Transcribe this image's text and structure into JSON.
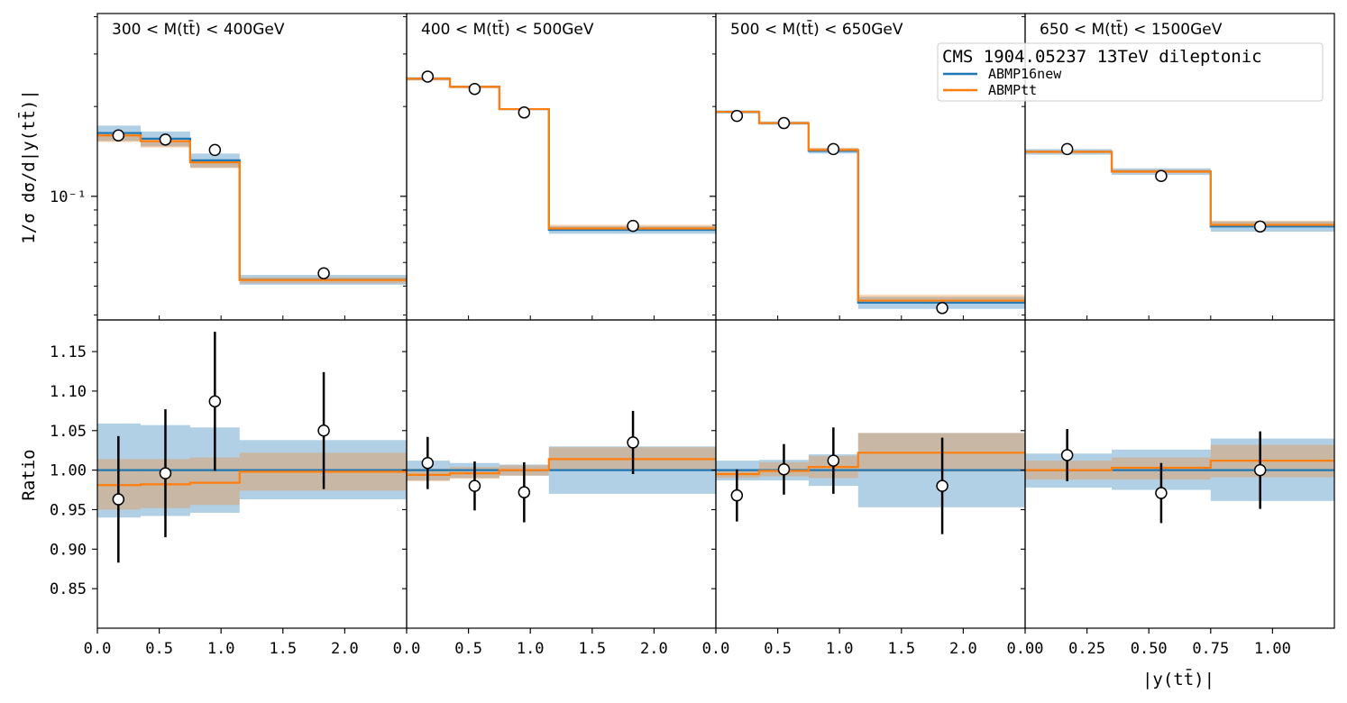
{
  "chart_data": {
    "type": "line",
    "legend": {
      "title": "CMS 1904.05237 13TeV dileptonic",
      "placement": "top-right",
      "entries": [
        {
          "name": "ABMP16new",
          "color": "#1f77b4"
        },
        {
          "name": "ABMPtt",
          "color": "#ff7f0e"
        }
      ]
    },
    "ylabel_top": "1/σ dσ/d|y(tt̄)|",
    "ylabel_bottom": "Ratio",
    "xlabel": "|y(tt̄)|",
    "top_yscale": "log",
    "top_yticklabel": "10⁻¹",
    "bottom_ylim": [
      0.8,
      1.19
    ],
    "bottom_yticks": [
      "0.85",
      "0.90",
      "0.95",
      "1.00",
      "1.05",
      "1.10",
      "1.15"
    ],
    "panels": [
      {
        "title": "300 < M(tt̄) < 400GeV",
        "xlim": [
          0,
          2.5
        ],
        "xticks": [
          "0.0",
          "0.5",
          "1.0",
          "1.5",
          "2.0"
        ],
        "bin_edges": [
          0,
          0.35,
          0.75,
          1.15,
          2.5
        ],
        "data": {
          "x": [
            0.17,
            0.55,
            0.95,
            1.83
          ],
          "y": [
            0.16,
            0.155,
            0.143,
            0.0552
          ],
          "yerr": [
            0.006,
            0.006,
            0.006,
            0.002
          ],
          "ratio": [
            0.963,
            0.996,
            1.087,
            1.05
          ],
          "ratio_err": [
            0.08,
            0.081,
            0.088,
            0.074
          ]
        },
        "ABMP16new": {
          "y": [
            0.163,
            0.156,
            0.132,
            0.0525
          ],
          "band_lo": [
            0.94,
            0.942,
            0.946,
            0.963
          ],
          "band_hi": [
            1.059,
            1.057,
            1.054,
            1.038
          ],
          "ratio": [
            1.0,
            1.0,
            1.0,
            1.0
          ]
        },
        "ABMPtt": {
          "y": [
            0.16,
            0.153,
            0.13,
            0.0524
          ],
          "band_lo": [
            0.95,
            0.952,
            0.956,
            0.974
          ],
          "band_hi": [
            1.014,
            1.014,
            1.016,
            1.022
          ],
          "ratio": [
            0.981,
            0.982,
            0.984,
            0.998
          ]
        }
      },
      {
        "title": "400 < M(tt̄) < 500GeV",
        "xlim": [
          0,
          2.5
        ],
        "xticks": [
          "0.0",
          "0.5",
          "1.0",
          "1.5",
          "2.0"
        ],
        "bin_edges": [
          0,
          0.35,
          0.75,
          1.15,
          2.5
        ],
        "data": {
          "x": [
            0.17,
            0.55,
            0.95,
            1.83
          ],
          "y": [
            0.252,
            0.229,
            0.191,
            0.0796
          ],
          "yerr": [
            0.003,
            0.003,
            0.003,
            0.0015
          ],
          "ratio": [
            1.009,
            0.98,
            0.972,
            1.035
          ],
          "ratio_err": [
            0.033,
            0.031,
            0.038,
            0.04
          ]
        },
        "ABMP16new": {
          "y": [
            0.248,
            0.233,
            0.196,
            0.0772
          ],
          "band_lo": [
            0.987,
            0.99,
            0.993,
            0.97
          ],
          "band_hi": [
            1.012,
            1.009,
            1.007,
            1.03
          ],
          "ratio": [
            1.0,
            1.0,
            1.0,
            1.0
          ]
        },
        "ABMPtt": {
          "y": [
            0.248,
            0.233,
            0.196,
            0.078
          ],
          "band_lo": [
            0.986,
            0.989,
            0.993,
            1.0
          ],
          "band_hi": [
            1.002,
            1.004,
            1.006,
            1.029
          ],
          "ratio": [
            0.994,
            0.996,
            1.0,
            1.014
          ]
        }
      },
      {
        "title": "500 < M(tt̄) < 650GeV",
        "xlim": [
          0,
          2.5
        ],
        "xticks": [
          "0.0",
          "0.5",
          "1.0",
          "1.5",
          "2.0"
        ],
        "bin_edges": [
          0,
          0.35,
          0.75,
          1.15,
          2.5
        ],
        "data": {
          "x": [
            0.17,
            0.55,
            0.95,
            1.83
          ],
          "y": [
            0.186,
            0.176,
            0.144,
            0.0422
          ],
          "yerr": [
            0.002,
            0.002,
            0.002,
            0.001
          ],
          "ratio": [
            0.968,
            1.001,
            1.012,
            0.98
          ],
          "ratio_err": [
            0.033,
            0.032,
            0.042,
            0.061
          ]
        },
        "ABMP16new": {
          "y": [
            0.192,
            0.176,
            0.142,
            0.044
          ],
          "band_lo": [
            0.987,
            0.987,
            0.98,
            0.953
          ],
          "band_hi": [
            1.012,
            1.013,
            1.02,
            1.047
          ],
          "ratio": [
            1.0,
            1.0,
            1.0,
            1.0
          ]
        },
        "ABMPtt": {
          "y": [
            0.192,
            0.176,
            0.143,
            0.0447
          ],
          "band_lo": [
            0.99,
            0.992,
            0.99,
            0.998
          ],
          "band_hi": [
            1.0,
            1.01,
            1.018,
            1.047
          ],
          "ratio": [
            0.995,
            0.999,
            1.004,
            1.022
          ]
        }
      },
      {
        "title": "650 < M(tt̄) < 1500GeV",
        "xlim": [
          0,
          1.25
        ],
        "xticks": [
          "0.00",
          "0.25",
          "0.50",
          "0.75",
          "1.00"
        ],
        "bin_edges": [
          0,
          0.35,
          0.75,
          1.25
        ],
        "data": {
          "x": [
            0.17,
            0.55,
            0.95
          ],
          "y": [
            0.144,
            0.117,
            0.0792
          ],
          "yerr": [
            0.002,
            0.002,
            0.0015
          ],
          "ratio": [
            1.019,
            0.971,
            1.0
          ],
          "ratio_err": [
            0.033,
            0.038,
            0.049
          ]
        },
        "ABMP16new": {
          "y": [
            0.141,
            0.121,
            0.0792
          ],
          "band_lo": [
            0.978,
            0.975,
            0.961
          ],
          "band_hi": [
            1.021,
            1.026,
            1.04
          ],
          "ratio": [
            1.0,
            1.0,
            1.0
          ]
        },
        "ABMPtt": {
          "y": [
            0.141,
            0.121,
            0.0802
          ],
          "band_lo": [
            0.988,
            0.988,
            0.991
          ],
          "band_hi": [
            1.012,
            1.016,
            1.032
          ],
          "ratio": [
            1.0,
            1.003,
            1.012
          ]
        }
      }
    ]
  }
}
